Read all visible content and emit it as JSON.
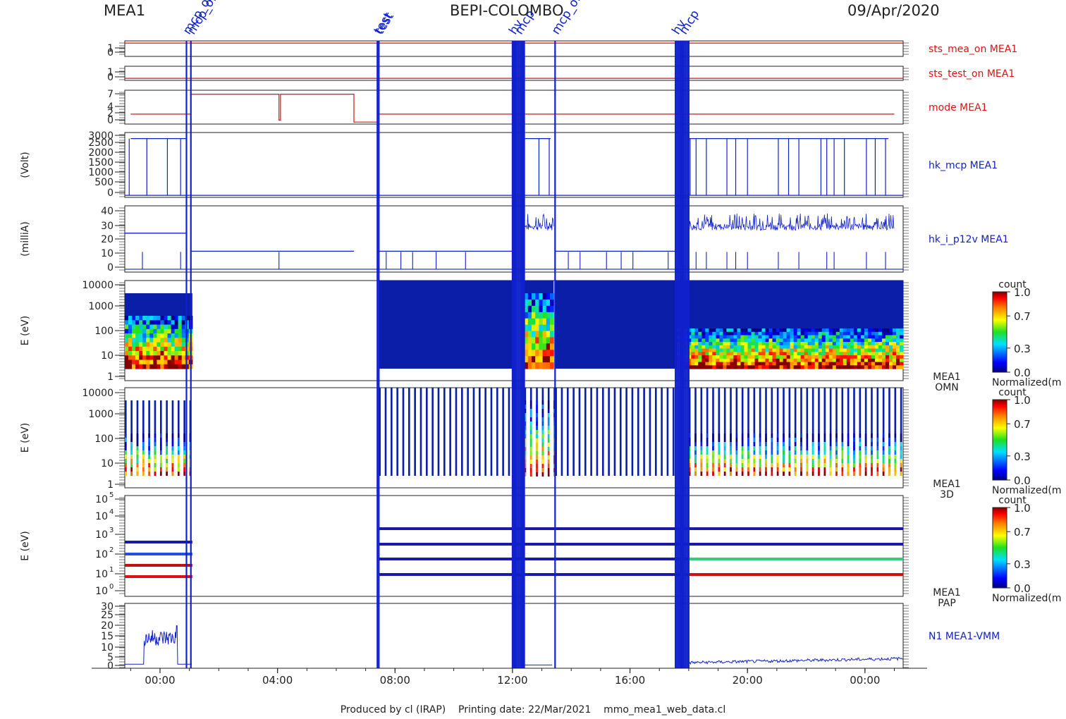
{
  "header": {
    "left": "MEA1",
    "center": "BEPI-COLOMBO",
    "right": "09/Apr/2020"
  },
  "footer": "Produced by cl (IRAP)    Printing date: 22/Mar/2021    mmo_mea1_web_data.cl",
  "event_labels": {
    "mcp_on": "mcp_on",
    "mcp_off": "mcp_off",
    "test": "test",
    "hv": "hv",
    "mcp": "mcp"
  },
  "colors": {
    "red": "#dd1111",
    "blue": "#1020cc",
    "dark_blue": "#1a1aa8",
    "frame": "#222222"
  },
  "chart_data": [
    {
      "type": "line",
      "name": "sts_mea_on MEA1",
      "yticks": [
        "1",
        "0"
      ],
      "ylim": [
        -0.2,
        1.2
      ],
      "value": 1,
      "color": "#dd1111"
    },
    {
      "type": "line",
      "name": "sts_test_on MEA1",
      "yticks": [
        "1",
        "0"
      ],
      "ylim": [
        -0.2,
        1.2
      ],
      "value": 0,
      "color": "#dd1111"
    },
    {
      "type": "line",
      "name": "mode MEA1",
      "yticks": [
        "7",
        "4",
        "2",
        "0"
      ],
      "ylim": [
        -0.5,
        8
      ],
      "x": [
        -1.0,
        1.05,
        1.05,
        4.05,
        4.05,
        4.1,
        4.1,
        6.6,
        6.6,
        7.4,
        7.4,
        25.0
      ],
      "y": [
        2,
        2,
        7,
        7,
        0.5,
        0.5,
        7,
        7,
        0,
        0,
        2,
        2
      ],
      "color": "#dd1111"
    },
    {
      "type": "line",
      "name": "hk_mcp MEA1",
      "ylabel": "(Volt)",
      "yticks": [
        "3000",
        "2500",
        "2000",
        "1500",
        "1000",
        "500",
        "0"
      ],
      "ylim": [
        -100,
        3100
      ],
      "color": "#1020cc"
    },
    {
      "type": "line",
      "name": "hk_i_p12v MEA1",
      "ylabel": "(milliA)",
      "yticks": [
        "40",
        "30",
        "20",
        "10",
        "0"
      ],
      "ylim": [
        -2,
        44
      ],
      "color": "#1020cc"
    },
    {
      "type": "heatmap",
      "name": "MEA1 OMN",
      "label_lines": [
        "MEA1",
        "OMN"
      ],
      "ylabel": "E (eV)",
      "yticks": [
        "10000",
        "1000",
        "100",
        "10",
        "1"
      ],
      "colorbar": {
        "title": "count",
        "ticks": [
          "1.0",
          "0.7",
          "0.3",
          "0.0"
        ],
        "label": "Normalized(m"
      }
    },
    {
      "type": "heatmap",
      "name": "MEA1 3D",
      "label_lines": [
        "MEA1",
        "3D"
      ],
      "ylabel": "E (eV)",
      "yticks": [
        "10000",
        "1000",
        "100",
        "10",
        "1"
      ],
      "colorbar": {
        "title": "count",
        "ticks": [
          "1.0",
          "0.7",
          "0.3",
          "0.0"
        ],
        "label": "Normalized(m"
      }
    },
    {
      "type": "heatmap",
      "name": "MEA1 PAP",
      "label_lines": [
        "MEA1",
        "PAP"
      ],
      "ylabel": "E (eV)",
      "yticks_base": "10",
      "yticks_exp": [
        "5",
        "4",
        "3",
        "2",
        "1",
        "0"
      ],
      "colorbar": {
        "title": "count",
        "ticks": [
          "1.0",
          "0.7",
          "0.3",
          "0.0"
        ],
        "label": "Normalized(m"
      }
    },
    {
      "type": "line",
      "name": "N1 MEA1-VMM",
      "yticks": [
        "30",
        "25",
        "20",
        "15",
        "10",
        "5",
        "0"
      ],
      "ylim": [
        -1,
        31
      ],
      "color": "#1020cc"
    }
  ],
  "x_axis": {
    "ticks": [
      "00:00",
      "04:00",
      "08:00",
      "12:00",
      "16:00",
      "20:00",
      "00:00"
    ],
    "tick_hours": [
      0,
      4,
      8,
      12,
      16,
      20,
      24
    ],
    "range_hours": [
      -1.2,
      25.3
    ]
  },
  "event_lines_hours": [
    0.9,
    1.05,
    7.4,
    7.45,
    12.0,
    12.05,
    12.1,
    12.15,
    12.2,
    12.25,
    12.3,
    12.35,
    12.4,
    13.45,
    17.55,
    17.6,
    17.65,
    17.7,
    17.75,
    17.8,
    17.85,
    17.9,
    17.95,
    18.0
  ]
}
